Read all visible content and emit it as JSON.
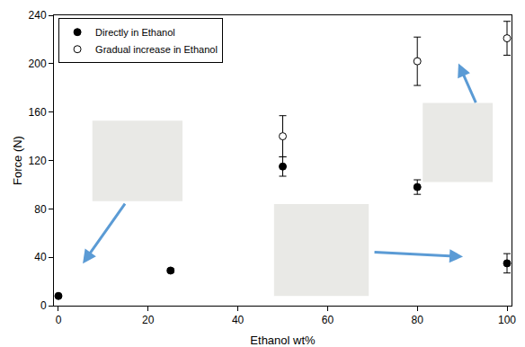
{
  "chart_data": {
    "type": "scatter",
    "x_label": "Ethanol wt%",
    "y_label": "Force (N)",
    "xlim": [
      -1,
      101
    ],
    "xticks": [
      0,
      20,
      40,
      60,
      80,
      100
    ],
    "ylim": [
      0,
      240
    ],
    "yticks": [
      0,
      40,
      80,
      120,
      160,
      200,
      240
    ],
    "grid": false,
    "legend": "upper left",
    "series": [
      {
        "name": "Directly in Ethanol",
        "color": "#000000",
        "marker": "filled",
        "x": [
          0,
          25,
          50,
          80,
          100
        ],
        "values": [
          8,
          29,
          115,
          98,
          35
        ],
        "errors": [
          1,
          1.5,
          8,
          6,
          8
        ]
      },
      {
        "name": "Gradual increase in Ethanol",
        "color": "#000000",
        "marker": "open",
        "x": [
          50,
          80,
          100
        ],
        "values": [
          140,
          202,
          221
        ],
        "errors": [
          17,
          20,
          14
        ]
      }
    ]
  }
}
